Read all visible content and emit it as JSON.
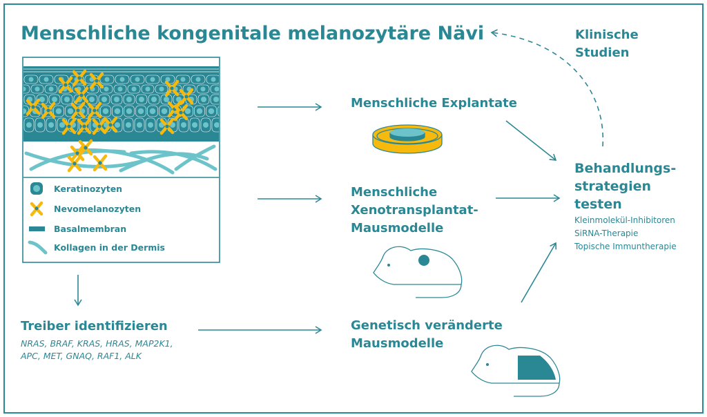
{
  "title": "Menschliche kongenitale melanozytäre Nävi",
  "clinical": [
    "Klinische",
    "Studien"
  ],
  "legend": {
    "items": [
      {
        "label": "Keratinozyten",
        "icon": "keratinocyte-icon"
      },
      {
        "label": "Nevomelanozyten",
        "icon": "nevomelanocyte-icon"
      },
      {
        "label": "Basalmembran",
        "icon": "basement-membrane-icon"
      },
      {
        "label": "Kollagen in der Dermis",
        "icon": "collagen-icon"
      }
    ]
  },
  "explants": {
    "title": "Menschliche Explantate"
  },
  "xenograft": {
    "title": [
      "Menschliche",
      "Xenotransplantat-",
      "Mausmodelle"
    ]
  },
  "drivers": {
    "title": "Treiber identifizieren",
    "genes": [
      "NRAS, BRAF, KRAS, HRAS, MAP2K1,",
      "APC, MET, GNAQ, RAF1, ALK"
    ]
  },
  "gem": {
    "title": [
      "Genetisch veränderte",
      "Mausmodelle"
    ]
  },
  "treatment": {
    "title": [
      "Behandlungs-",
      "strategien",
      "testen"
    ],
    "items": [
      "Kleinmolekül-Inhibitoren",
      "SiRNA-Therapie",
      "Topische Immuntherapie"
    ]
  },
  "colors": {
    "teal": "#2a8794",
    "light_teal": "#6cc4ca",
    "yellow": "#f6b90e"
  }
}
